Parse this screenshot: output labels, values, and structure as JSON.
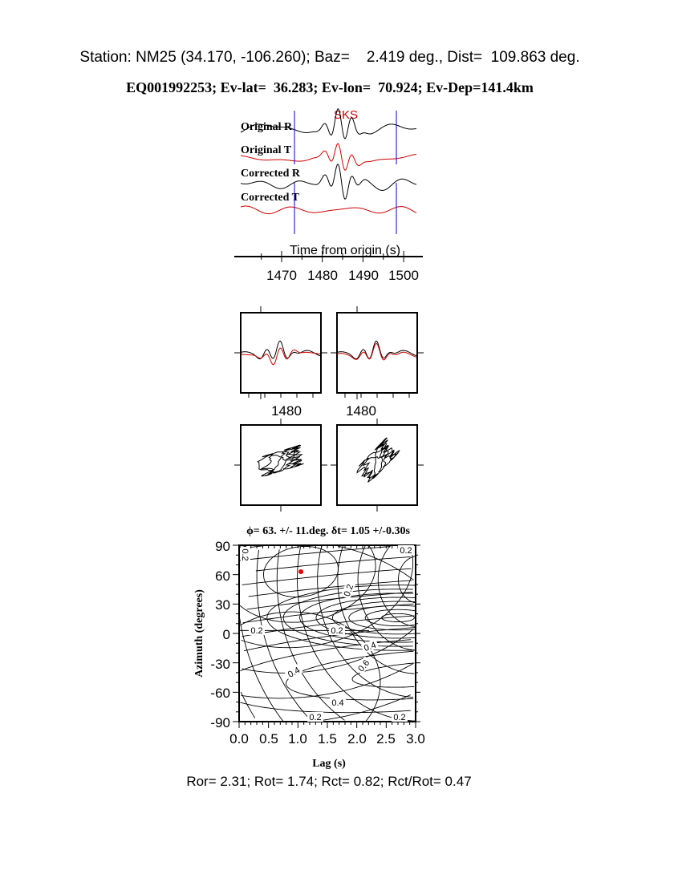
{
  "header": {
    "station_line": "Station: NM25 (34.170, -106.260); Baz=    2.419 deg., Dist=  109.863 deg.",
    "event_line": "EQ001992253; Ev-lat=  36.283; Ev-lon=  70.924; Ev-Dep=141.4km"
  },
  "colors": {
    "trace": "#000000",
    "transverse": "#cc0000",
    "window": "#0000cc",
    "best_fit": "#ee0000"
  },
  "chart_data": [
    {
      "type": "line",
      "phase_label": "SKS",
      "trace_labels": [
        "Original R",
        "Original T",
        "Corrected R",
        "Corrected T"
      ],
      "xlabel": "Time from origin (s)",
      "xticks": [
        "1470",
        "1480",
        "1490",
        "1500"
      ],
      "xlim": [
        1460,
        1505
      ],
      "window": [
        1473.2,
        1498.3
      ]
    },
    {
      "type": "line",
      "panel": "waveform-comparison",
      "xticks": [
        "1480",
        "1480"
      ]
    },
    {
      "type": "scatter",
      "panel": "particle-motion"
    },
    {
      "type": "heatmap",
      "title": "ϕ= 63. +/- 11.deg. δt= 1.05 +/-0.30s",
      "xlabel": "Lag (s)",
      "ylabel": "Azimuth (degrees)",
      "xticks": [
        "0.0",
        "0.5",
        "1.0",
        "1.5",
        "2.0",
        "2.5",
        "3.0"
      ],
      "yticks": [
        "90",
        "60",
        "30",
        "0",
        "-30",
        "-60",
        "-90"
      ],
      "xlim": [
        0,
        3
      ],
      "ylim": [
        -90,
        90
      ],
      "contour_labels": [
        "0.2",
        "0.2",
        "0.2",
        "0.2",
        "0.2",
        "0.4",
        "0.4",
        "0.6",
        "0.4",
        "0.2",
        "0.2"
      ],
      "best": {
        "lag": 1.05,
        "azimuth": 63
      }
    }
  ],
  "footer": "Ror= 2.31; Rot= 1.74; Rct= 0.82; Rct/Rot= 0.47"
}
